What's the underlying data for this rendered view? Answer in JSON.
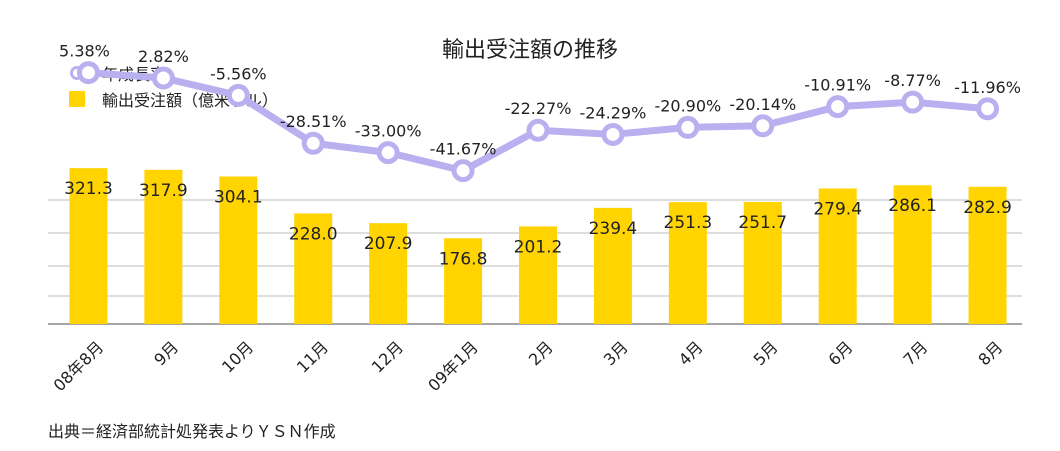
{
  "chart_data": {
    "type": "bar",
    "title": "輸出受注額の推移",
    "categories": [
      "08年8月",
      "9月",
      "10月",
      "11月",
      "12月",
      "09年1月",
      "2月",
      "3月",
      "4月",
      "5月",
      "6月",
      "7月",
      "8月"
    ],
    "series": [
      {
        "name": "輸出受注額（億米ドル）",
        "type": "bar",
        "color": "#ffd400",
        "values": [
          321.3,
          317.9,
          304.1,
          228.0,
          207.9,
          176.8,
          201.2,
          239.4,
          251.3,
          251.7,
          279.4,
          286.1,
          282.9
        ],
        "labels": [
          "321.3",
          "317.9",
          "304.1",
          "228.0",
          "207.9",
          "176.8",
          "201.2",
          "239.4",
          "251.3",
          "251.7",
          "279.4",
          "286.1",
          "282.9"
        ]
      },
      {
        "name": "年成長率",
        "type": "line",
        "color": "#b9b0f0",
        "values": [
          5.38,
          2.82,
          -5.56,
          -28.51,
          -33.0,
          -41.67,
          -22.27,
          -24.29,
          -20.9,
          -20.14,
          -10.91,
          -8.77,
          -11.96
        ],
        "labels": [
          "5.38%",
          "2.82%",
          "-5.56%",
          "-28.51%",
          "-33.00%",
          "-41.67%",
          "-22.27%",
          "-24.29%",
          "-20.90%",
          "-20.14%",
          "-10.91%",
          "-8.77%",
          "-11.96%"
        ]
      }
    ],
    "bar_axis_range": [
      0,
      400
    ],
    "line_axis_range": [
      -60,
      10
    ],
    "grid": true,
    "legend_position": "top-left"
  },
  "footer": {
    "source": "出典＝経済部統計処発表よりＹＳＮ作成"
  }
}
